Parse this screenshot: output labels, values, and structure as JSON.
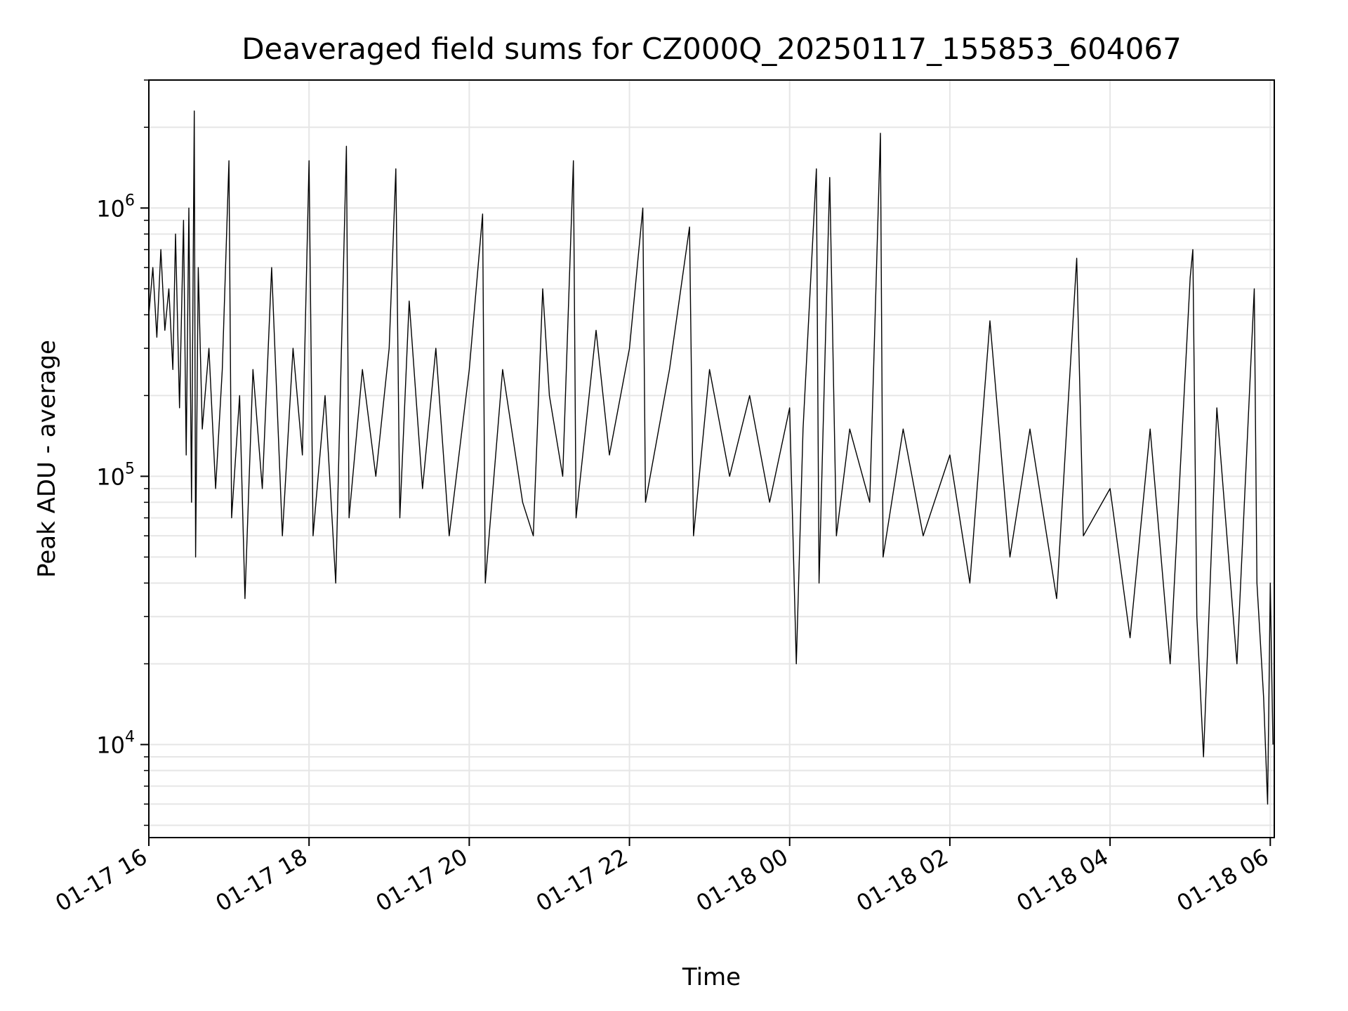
{
  "chart_data": {
    "type": "line",
    "title": "Deaveraged field sums for CZ000Q_20250117_155853_604067",
    "xlabel": "Time",
    "ylabel": "Peak ADU - average",
    "x_scale": "time",
    "y_scale": "log",
    "xlim": [
      "2025-01-17 16:00",
      "2025-01-18 06:03"
    ],
    "ylim": [
      4500,
      3000000
    ],
    "grid": true,
    "x_ticks": [
      {
        "value": "2025-01-17 16:00",
        "label": "01-17 16"
      },
      {
        "value": "2025-01-17 18:00",
        "label": "01-17 18"
      },
      {
        "value": "2025-01-17 20:00",
        "label": "01-17 20"
      },
      {
        "value": "2025-01-17 22:00",
        "label": "01-17 22"
      },
      {
        "value": "2025-01-18 00:00",
        "label": "01-18 00"
      },
      {
        "value": "2025-01-18 02:00",
        "label": "01-18 02"
      },
      {
        "value": "2025-01-18 04:00",
        "label": "01-18 04"
      },
      {
        "value": "2025-01-18 06:00",
        "label": "01-18 06"
      }
    ],
    "y_ticks": [
      {
        "value": 10000,
        "base": "10",
        "exp": "4"
      },
      {
        "value": 100000,
        "base": "10",
        "exp": "5"
      },
      {
        "value": 1000000,
        "base": "10",
        "exp": "6"
      }
    ],
    "series": [
      {
        "color": "#000000",
        "points": [
          [
            "2025-01-17 16:00",
            400000
          ],
          [
            "2025-01-17 16:03",
            600000
          ],
          [
            "2025-01-17 16:06",
            330000
          ],
          [
            "2025-01-17 16:09",
            700000
          ],
          [
            "2025-01-17 16:12",
            350000
          ],
          [
            "2025-01-17 16:15",
            500000
          ],
          [
            "2025-01-17 16:18",
            250000
          ],
          [
            "2025-01-17 16:20",
            800000
          ],
          [
            "2025-01-17 16:23",
            180000
          ],
          [
            "2025-01-17 16:26",
            900000
          ],
          [
            "2025-01-17 16:28",
            120000
          ],
          [
            "2025-01-17 16:30",
            1000000
          ],
          [
            "2025-01-17 16:32",
            80000
          ],
          [
            "2025-01-17 16:34",
            2300000
          ],
          [
            "2025-01-17 16:35",
            50000
          ],
          [
            "2025-01-17 16:37",
            600000
          ],
          [
            "2025-01-17 16:40",
            150000
          ],
          [
            "2025-01-17 16:45",
            300000
          ],
          [
            "2025-01-17 16:50",
            90000
          ],
          [
            "2025-01-17 16:55",
            250000
          ],
          [
            "2025-01-17 17:00",
            1500000
          ],
          [
            "2025-01-17 17:02",
            70000
          ],
          [
            "2025-01-17 17:08",
            200000
          ],
          [
            "2025-01-17 17:12",
            35000
          ],
          [
            "2025-01-17 17:18",
            250000
          ],
          [
            "2025-01-17 17:25",
            90000
          ],
          [
            "2025-01-17 17:32",
            600000
          ],
          [
            "2025-01-17 17:40",
            60000
          ],
          [
            "2025-01-17 17:48",
            300000
          ],
          [
            "2025-01-17 17:55",
            120000
          ],
          [
            "2025-01-17 18:00",
            1500000
          ],
          [
            "2025-01-17 18:03",
            60000
          ],
          [
            "2025-01-17 18:12",
            200000
          ],
          [
            "2025-01-17 18:20",
            40000
          ],
          [
            "2025-01-17 18:28",
            1700000
          ],
          [
            "2025-01-17 18:30",
            70000
          ],
          [
            "2025-01-17 18:40",
            250000
          ],
          [
            "2025-01-17 18:50",
            100000
          ],
          [
            "2025-01-17 19:00",
            300000
          ],
          [
            "2025-01-17 19:05",
            1400000
          ],
          [
            "2025-01-17 19:08",
            70000
          ],
          [
            "2025-01-17 19:15",
            450000
          ],
          [
            "2025-01-17 19:25",
            90000
          ],
          [
            "2025-01-17 19:35",
            300000
          ],
          [
            "2025-01-17 19:45",
            60000
          ],
          [
            "2025-01-17 20:00",
            250000
          ],
          [
            "2025-01-17 20:10",
            950000
          ],
          [
            "2025-01-17 20:12",
            40000
          ],
          [
            "2025-01-17 20:25",
            250000
          ],
          [
            "2025-01-17 20:40",
            80000
          ],
          [
            "2025-01-17 20:48",
            60000
          ],
          [
            "2025-01-17 20:55",
            500000
          ],
          [
            "2025-01-17 21:00",
            200000
          ],
          [
            "2025-01-17 21:10",
            100000
          ],
          [
            "2025-01-17 21:18",
            1500000
          ],
          [
            "2025-01-17 21:20",
            70000
          ],
          [
            "2025-01-17 21:35",
            350000
          ],
          [
            "2025-01-17 21:45",
            120000
          ],
          [
            "2025-01-17 22:00",
            300000
          ],
          [
            "2025-01-17 22:10",
            1000000
          ],
          [
            "2025-01-17 22:12",
            80000
          ],
          [
            "2025-01-17 22:30",
            250000
          ],
          [
            "2025-01-17 22:45",
            850000
          ],
          [
            "2025-01-17 22:48",
            60000
          ],
          [
            "2025-01-17 23:00",
            250000
          ],
          [
            "2025-01-17 23:15",
            100000
          ],
          [
            "2025-01-17 23:30",
            200000
          ],
          [
            "2025-01-17 23:45",
            80000
          ],
          [
            "2025-01-18 00:00",
            180000
          ],
          [
            "2025-01-18 00:05",
            20000
          ],
          [
            "2025-01-18 00:10",
            150000
          ],
          [
            "2025-01-18 00:20",
            1400000
          ],
          [
            "2025-01-18 00:22",
            40000
          ],
          [
            "2025-01-18 00:30",
            1300000
          ],
          [
            "2025-01-18 00:35",
            60000
          ],
          [
            "2025-01-18 00:45",
            150000
          ],
          [
            "2025-01-18 01:00",
            80000
          ],
          [
            "2025-01-18 01:08",
            1900000
          ],
          [
            "2025-01-18 01:10",
            50000
          ],
          [
            "2025-01-18 01:25",
            150000
          ],
          [
            "2025-01-18 01:40",
            60000
          ],
          [
            "2025-01-18 02:00",
            120000
          ],
          [
            "2025-01-18 02:15",
            40000
          ],
          [
            "2025-01-18 02:30",
            380000
          ],
          [
            "2025-01-18 02:45",
            50000
          ],
          [
            "2025-01-18 03:00",
            150000
          ],
          [
            "2025-01-18 03:20",
            35000
          ],
          [
            "2025-01-18 03:35",
            650000
          ],
          [
            "2025-01-18 03:40",
            60000
          ],
          [
            "2025-01-18 04:00",
            90000
          ],
          [
            "2025-01-18 04:15",
            25000
          ],
          [
            "2025-01-18 04:30",
            150000
          ],
          [
            "2025-01-18 04:45",
            20000
          ],
          [
            "2025-01-18 05:00",
            550000
          ],
          [
            "2025-01-18 05:02",
            700000
          ],
          [
            "2025-01-18 05:05",
            30000
          ],
          [
            "2025-01-18 05:10",
            9000
          ],
          [
            "2025-01-18 05:20",
            180000
          ],
          [
            "2025-01-18 05:35",
            20000
          ],
          [
            "2025-01-18 05:48",
            500000
          ],
          [
            "2025-01-18 05:50",
            40000
          ],
          [
            "2025-01-18 05:55",
            15000
          ],
          [
            "2025-01-18 05:58",
            6000
          ],
          [
            "2025-01-18 06:00",
            40000
          ],
          [
            "2025-01-18 06:02",
            10000
          ]
        ]
      }
    ]
  }
}
